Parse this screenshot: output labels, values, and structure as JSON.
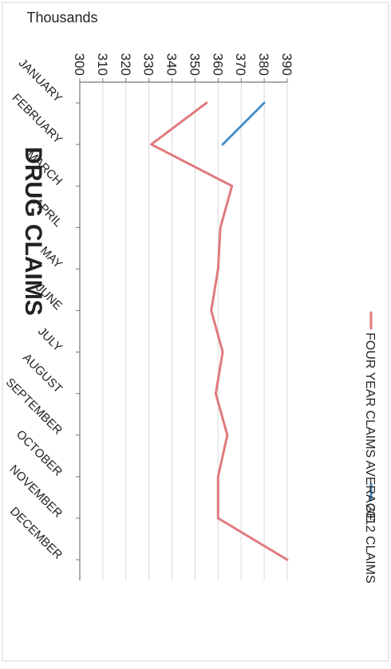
{
  "chart_data": {
    "type": "line",
    "title": "DRUG CLAIMS",
    "ylabel": "Thousands",
    "ylim": [
      300,
      390
    ],
    "ticks": [
      300,
      310,
      320,
      330,
      340,
      350,
      360,
      370,
      380,
      390
    ],
    "grid": true,
    "orientation": "rotated 90° clockwise",
    "legend_position": "bottom",
    "categories": [
      "JANUARY",
      "FEBRUARY",
      "MARCH",
      "APRIL",
      "MAY",
      "JUNE",
      "JULY",
      "AUGUST",
      "SEPTEMBER",
      "OCTOBER",
      "NOVEMBER",
      "DECEMBER"
    ],
    "series": [
      {
        "name": "2012 CLAIMS",
        "color": "#4a90c8",
        "values": [
          380,
          362,
          null,
          null,
          null,
          null,
          null,
          null,
          null,
          null,
          null,
          null
        ]
      },
      {
        "name": "FOUR YEAR CLAIMS AVERAGE",
        "color": "#e07a7e",
        "values": [
          355,
          331,
          366,
          361,
          360,
          357,
          362,
          359,
          364,
          360,
          360,
          390
        ]
      }
    ]
  }
}
